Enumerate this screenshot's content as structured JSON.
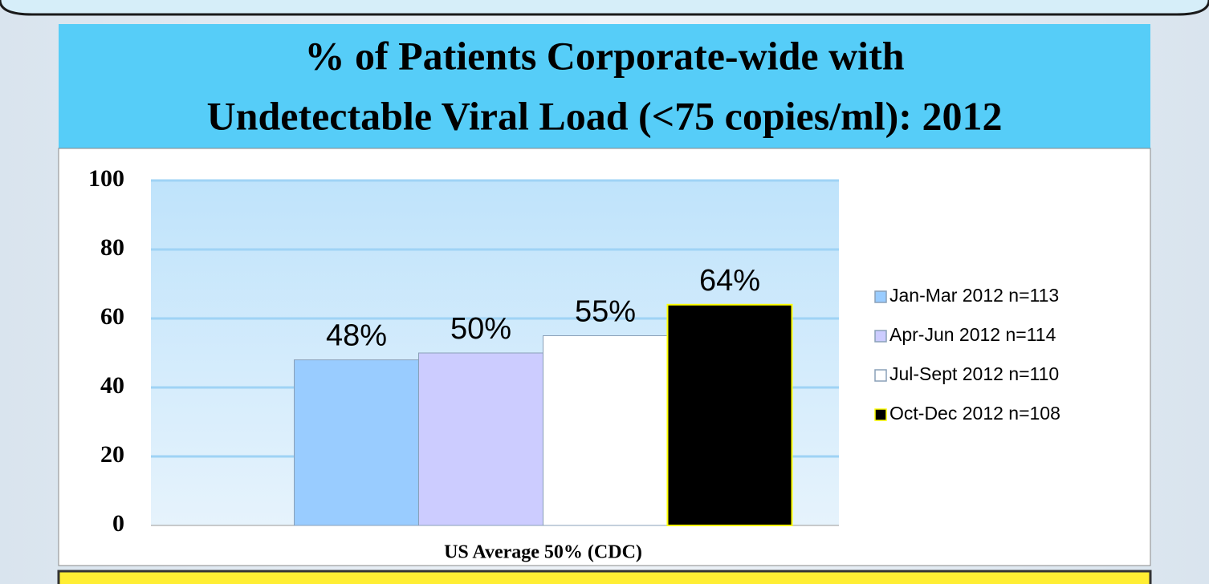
{
  "chart_data": {
    "type": "bar",
    "title": [
      "% of Patients Corporate-wide with",
      "Undetectable Viral Load (<75 copies/ml): 2012"
    ],
    "categories": [
      "US Average 50% (CDC)"
    ],
    "series": [
      {
        "name": "Jan-Mar 2012 n=113",
        "color": "#99ccff",
        "values": [
          48
        ],
        "value_labels": [
          "48%"
        ]
      },
      {
        "name": "Apr-Jun 2012 n=114",
        "color": "#ccccff",
        "values": [
          50
        ],
        "value_labels": [
          "50%"
        ]
      },
      {
        "name": "Jul-Sept 2012 n=110",
        "color": "#ffffff",
        "values": [
          55
        ],
        "value_labels": [
          "55%"
        ]
      },
      {
        "name": "Oct-Dec 2012 n=108",
        "color": "#000000",
        "values": [
          64
        ],
        "value_labels": [
          "64%"
        ]
      }
    ],
    "ylim": [
      0,
      100
    ],
    "yticks": [
      0,
      20,
      40,
      60,
      80,
      100
    ],
    "grid": true,
    "legend": "right"
  }
}
